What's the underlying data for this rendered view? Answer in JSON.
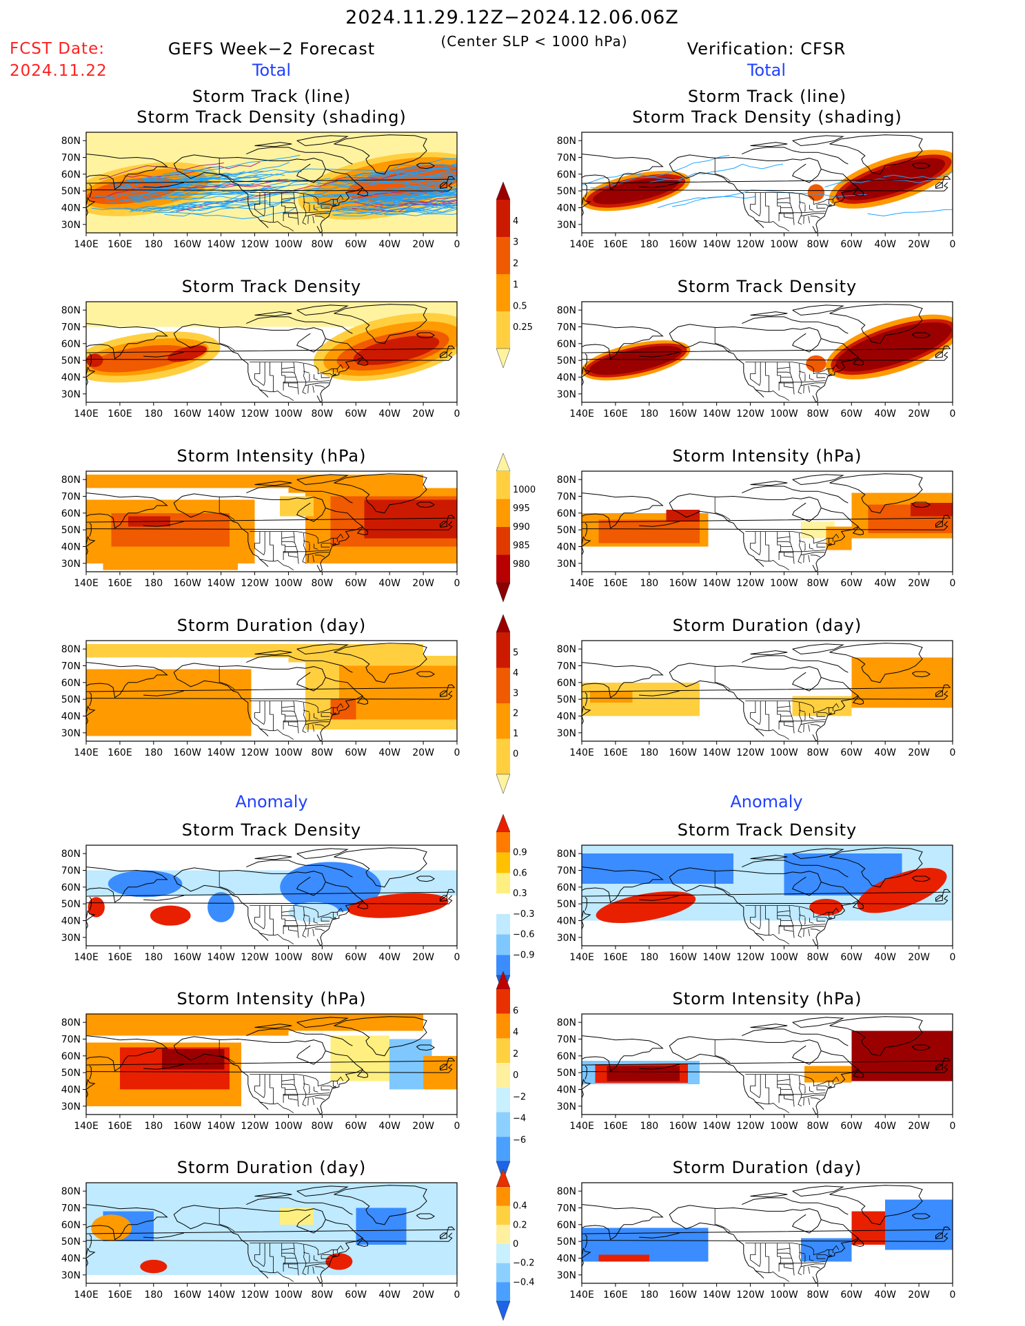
{
  "header": {
    "date_range": "2024.11.29.12Z−2024.12.06.06Z",
    "fcst_label": "FCST Date:",
    "fcst_date": "2024.11.22",
    "forecast_title": "GEFS Week−2 Forecast",
    "criterion": "(Center SLP < 1000 hPa)",
    "verification": "Verification: CFSR",
    "left_section_total": "Total",
    "right_section_total": "Total",
    "left_section_anomaly": "Anomaly",
    "right_section_anomaly": "Anomaly"
  },
  "panel_titles": {
    "track_line": "Storm Track (line)",
    "track_shading": "Storm Track Density (shading)",
    "density": "Storm Track Density",
    "intensity": "Storm Intensity (hPa)",
    "duration": "Storm Duration (day)"
  },
  "axes": {
    "lat_labels": [
      "80N",
      "70N",
      "60N",
      "50N",
      "40N",
      "30N"
    ],
    "lon_labels": [
      "140E",
      "160E",
      "180",
      "160W",
      "140W",
      "120W",
      "100W",
      "80W",
      "60W",
      "40W",
      "20W",
      "0"
    ]
  },
  "colorbars": {
    "density_total": {
      "labels": [
        "4",
        "3",
        "2",
        "1",
        "0.5",
        "0.25"
      ],
      "colors": [
        "#9b0000",
        "#cc1a00",
        "#f05a00",
        "#ff9a00",
        "#ffcf40",
        "#fff3a0"
      ]
    },
    "intensity_total": {
      "labels": [
        "1000",
        "995",
        "990",
        "985",
        "980"
      ],
      "colors": [
        "#fff3a0",
        "#ffcf40",
        "#ff9a00",
        "#e03a00",
        "#b80000",
        "#8b0000"
      ]
    },
    "duration_total": {
      "labels": [
        "5",
        "4",
        "3",
        "2",
        "1",
        "0"
      ],
      "colors": [
        "#9b0000",
        "#cc1a00",
        "#f05a00",
        "#ff9a00",
        "#ffcf40",
        "#fff3a0"
      ]
    },
    "density_anom": {
      "labels": [
        "0.9",
        "0.6",
        "0.3",
        "−0.3",
        "−0.6",
        "−0.9"
      ],
      "colors": [
        "#e82000",
        "#ff7a00",
        "#ffc000",
        "#ffef80",
        "#ffffff",
        "#bfeaff",
        "#7ec8ff",
        "#3a8cff",
        "#1e5fd8"
      ]
    },
    "intensity_anom": {
      "labels": [
        "6",
        "4",
        "2",
        "0",
        "−2",
        "−4",
        "−6"
      ],
      "colors": [
        "#c00000",
        "#e83000",
        "#ff9000",
        "#ffd040",
        "#fff0a0",
        "#c8f0ff",
        "#8cd0ff",
        "#4aa0ff",
        "#1e64e8"
      ]
    },
    "duration_anom": {
      "labels": [
        "0.4",
        "0.2",
        "0",
        "−0.2",
        "−0.4"
      ],
      "colors": [
        "#e83000",
        "#ff9000",
        "#ffd040",
        "#fff0a0",
        "#c8f0ff",
        "#8cd0ff",
        "#4aa0ff",
        "#1e64e8"
      ]
    }
  },
  "map_colors": {
    "tot_1": "#fff3a0",
    "tot_2": "#ffcf40",
    "tot_3": "#ff9a00",
    "tot_4": "#f05a00",
    "tot_5": "#cc1a00",
    "tot_6": "#9b0000",
    "anom_pos1": "#ffef80",
    "anom_pos2": "#ff9a00",
    "anom_pos3": "#e82000",
    "anom_pos4": "#9b0000",
    "anom_neg1": "#bfeaff",
    "anom_neg2": "#7ec8ff",
    "anom_neg3": "#3a8cff",
    "anom_neg4": "#1e5fd8",
    "track_lines": "#1aa3ff",
    "track_lines_dark": "#b02080"
  }
}
